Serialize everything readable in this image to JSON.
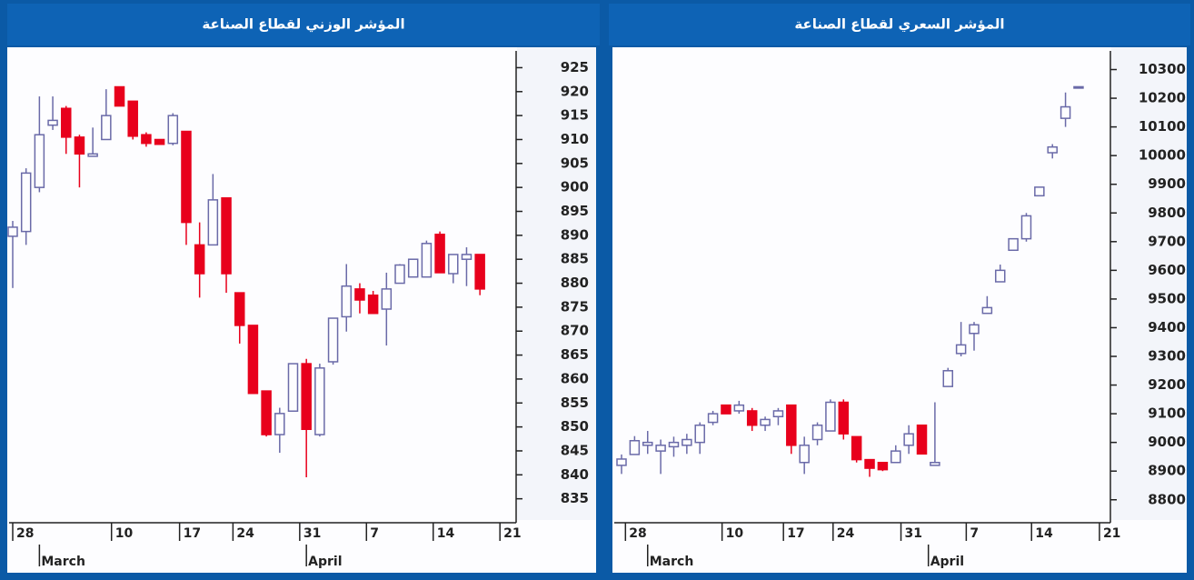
{
  "chart_data": [
    {
      "type": "candlestick",
      "title": "المؤشر الوزني لقطاع الصناعة",
      "open": [
        889.8,
        890.8,
        900,
        913,
        916.5,
        910.5,
        906.5,
        910,
        921,
        918,
        911,
        910,
        909.2,
        911.7,
        888,
        888,
        897.8,
        878,
        871.2,
        857.5,
        848.4,
        853.3,
        863.2,
        848.4,
        863.6,
        873,
        878.8,
        877.5,
        874.6,
        880,
        881.3,
        881.3,
        890.2,
        882,
        885,
        886
      ],
      "high": [
        893,
        904,
        919,
        919,
        917,
        911,
        912.5,
        920.5,
        921,
        918,
        911.5,
        910,
        915.5,
        911.7,
        892.7,
        902.8,
        897.8,
        878,
        871,
        857.5,
        854,
        863.2,
        864.2,
        863.2,
        872.7,
        884,
        880,
        878.4,
        882.2,
        884,
        885,
        888.9,
        890.8,
        886,
        887.5,
        886
      ],
      "low": [
        879,
        888,
        899,
        912,
        907,
        900,
        906.5,
        910,
        917,
        910,
        908.5,
        909,
        908.8,
        888,
        877,
        888,
        878,
        867.4,
        857,
        848,
        844.6,
        853.3,
        839.5,
        848,
        863,
        869.9,
        873.7,
        873.7,
        867,
        880,
        881.3,
        881.3,
        882.2,
        880,
        879.4,
        877.5
      ],
      "close": [
        891.7,
        903,
        911,
        914,
        910.5,
        907,
        907,
        915,
        917,
        910.7,
        909.2,
        909,
        915,
        892.7,
        882,
        897.4,
        882,
        871.2,
        857,
        848.4,
        852.8,
        863.2,
        849.5,
        862.3,
        872.7,
        879.4,
        876.5,
        873.7,
        878.8,
        883.8,
        885,
        888.3,
        882.2,
        886,
        886,
        878.8
      ],
      "up_color": "#6a6aa8",
      "down_color": "#e8001c",
      "ylim": [
        830,
        928.5
      ],
      "yticks": [
        925,
        920,
        915,
        910,
        905,
        900,
        895,
        890,
        885,
        880,
        875,
        870,
        865,
        860,
        855,
        850,
        845,
        840,
        835
      ],
      "xticks": [
        {
          "value": 0,
          "label": "28"
        },
        {
          "value": 7.4,
          "label": "10"
        },
        {
          "value": 12.5,
          "label": "17"
        },
        {
          "value": 16.5,
          "label": "24"
        },
        {
          "value": 21.5,
          "label": "31"
        },
        {
          "value": 26.5,
          "label": "7"
        },
        {
          "value": 31.5,
          "label": "14"
        },
        {
          "value": 36.5,
          "label": "21"
        }
      ],
      "months": [
        {
          "value": 2,
          "label": "March"
        },
        {
          "value": 22,
          "label": "April"
        }
      ]
    },
    {
      "type": "candlestick",
      "title": "المؤشر السعري لقطاع الصناعة",
      "open": [
        8920,
        8958,
        8990,
        8970,
        8985,
        8990,
        9000,
        9070,
        9130,
        9110,
        9110,
        9060,
        9090,
        9130,
        8930,
        9010,
        9040,
        9140,
        9020,
        8940,
        8930,
        8930,
        8990,
        9060,
        8920,
        9195,
        9310,
        9380,
        9450,
        9560,
        9670,
        9710,
        9860,
        10010,
        10130,
        10240
      ],
      "high": [
        8958,
        9022,
        9040,
        9010,
        9020,
        9030,
        9070,
        9110,
        9130,
        9145,
        9120,
        9090,
        9120,
        9130,
        9020,
        9070,
        9150,
        9150,
        9020,
        8940,
        8930,
        8990,
        9060,
        9060,
        9140,
        9260,
        9420,
        9420,
        9510,
        9620,
        9710,
        9800,
        9890,
        10040,
        10220,
        10240
      ],
      "low": [
        8890,
        8958,
        8960,
        8890,
        8950,
        8960,
        8960,
        9060,
        9100,
        9100,
        9040,
        9040,
        9060,
        8960,
        8890,
        8990,
        9040,
        9010,
        8930,
        8880,
        8900,
        8930,
        8960,
        8960,
        8920,
        9195,
        9300,
        9320,
        9450,
        9560,
        9670,
        9700,
        9860,
        9990,
        10100,
        10240
      ],
      "close": [
        8942,
        9006,
        9000,
        8990,
        9000,
        9010,
        9060,
        9100,
        9100,
        9130,
        9060,
        9080,
        9110,
        8990,
        8990,
        9060,
        9140,
        9030,
        8940,
        8910,
        8905,
        8970,
        9030,
        8960,
        8930,
        9250,
        9340,
        9410,
        9470,
        9600,
        9710,
        9790,
        9890,
        10030,
        10170,
        10240
      ],
      "up_color": "#6a6aa8",
      "down_color": "#e8001c",
      "ylim": [
        8720,
        10365
      ],
      "yticks": [
        10300,
        10200,
        10100,
        10000,
        9900,
        9800,
        9700,
        9600,
        9500,
        9400,
        9300,
        9200,
        9100,
        9000,
        8900,
        8800
      ],
      "xticks": [
        {
          "value": 0.3,
          "label": "28"
        },
        {
          "value": 7.7,
          "label": "10"
        },
        {
          "value": 12.4,
          "label": "17"
        },
        {
          "value": 16.2,
          "label": "24"
        },
        {
          "value": 21.4,
          "label": "31"
        },
        {
          "value": 26.4,
          "label": "7"
        },
        {
          "value": 31.4,
          "label": "14"
        },
        {
          "value": 36.6,
          "label": "21"
        }
      ],
      "months": [
        {
          "value": 2,
          "label": "March"
        },
        {
          "value": 23.5,
          "label": "April"
        }
      ]
    }
  ]
}
